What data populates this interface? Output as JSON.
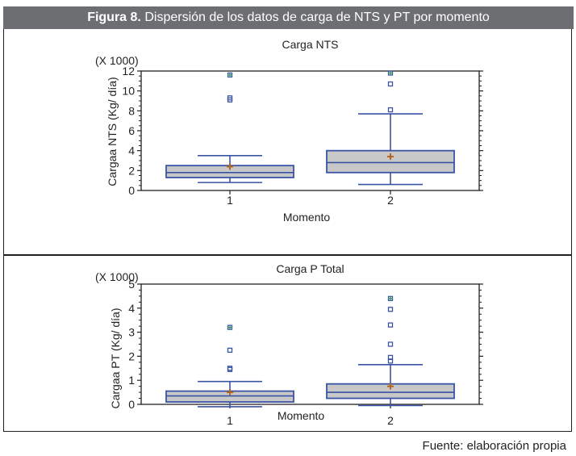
{
  "figure": {
    "label": "Figura 8.",
    "title": "Dispersión de los datos de carga de NTS y PT por momento",
    "source": "Fuente: elaboración propia"
  },
  "colors": {
    "box_fill": "#c8c8c8",
    "box_stroke": "#3a54a4",
    "mean": "#b5651d",
    "outlier": "#3a54a4",
    "far_outlier": "#2e8b57",
    "header": "#6d6e71"
  },
  "chart_data": [
    {
      "type": "box",
      "title": "Carga NTS",
      "xlabel": "Momento",
      "ylabel": "Cargaa NTS (Kg/ día)",
      "multiplier": "(X 1000)",
      "ylim": [
        0,
        12
      ],
      "yticks": [
        0,
        2,
        4,
        6,
        8,
        10,
        12
      ],
      "categories": [
        "1",
        "2"
      ],
      "boxes": [
        {
          "category": "1",
          "min": 0.8,
          "q1": 1.3,
          "median": 1.8,
          "q3": 2.5,
          "max": 3.5,
          "mean": 2.4,
          "outliers": [
            9.1,
            9.3
          ],
          "far_outliers": [
            11.6
          ]
        },
        {
          "category": "2",
          "min": 0.6,
          "q1": 1.8,
          "median": 2.8,
          "q3": 4.0,
          "max": 7.7,
          "mean": 3.4,
          "outliers": [
            8.1,
            10.7
          ],
          "far_outliers": [
            11.8
          ]
        }
      ]
    },
    {
      "type": "box",
      "title": "Carga P Total",
      "xlabel": "Momento",
      "ylabel": "Cargaa PT (Kg/ día)",
      "multiplier": "(X 1000)",
      "ylim": [
        0,
        5
      ],
      "yticks": [
        0,
        1,
        2,
        3,
        4,
        5
      ],
      "categories": [
        "1",
        "2"
      ],
      "boxes": [
        {
          "category": "1",
          "min": -0.1,
          "q1": 0.1,
          "median": 0.35,
          "q3": 0.55,
          "max": 0.95,
          "mean": 0.5,
          "outliers": [
            1.45,
            1.5,
            2.25
          ],
          "far_outliers": [
            3.2
          ]
        },
        {
          "category": "2",
          "min": -0.05,
          "q1": 0.25,
          "median": 0.5,
          "q3": 0.85,
          "max": 1.65,
          "mean": 0.75,
          "outliers": [
            1.8,
            1.95,
            2.5,
            3.3,
            3.95
          ],
          "far_outliers": [
            4.4
          ]
        }
      ]
    }
  ]
}
